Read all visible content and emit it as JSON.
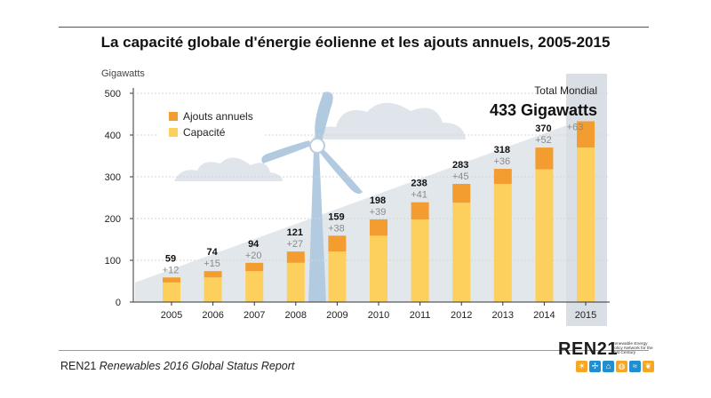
{
  "title": "La capacité globale d'énergie éolienne et les ajouts annuels, 2005-2015",
  "source": {
    "publisher": "REN21",
    "report": "Renewables 2016 Global Status Report"
  },
  "logo": {
    "wordmark": "REN21",
    "tagline": "Renewable Energy Policy Network for the 21st Century",
    "icons": [
      "sun-icon",
      "wind-icon",
      "hydro-icon",
      "power-icon",
      "wave-icon",
      "leaf-icon"
    ],
    "icon_colors": [
      "#f5a623",
      "#1f8fd0",
      "#1f8fd0",
      "#f5a623",
      "#1f8fd0",
      "#f5a623"
    ]
  },
  "total": {
    "label": "Total Mondial",
    "value": "433 Gigawatts"
  },
  "chart_data": {
    "type": "bar",
    "stacked": true,
    "ylabel": "Gigawatts",
    "ylim": [
      0,
      500
    ],
    "yticks": [
      0,
      100,
      200,
      300,
      400,
      500
    ],
    "grid": true,
    "legend_position": "top-left",
    "categories": [
      "2005",
      "2006",
      "2007",
      "2008",
      "2009",
      "2010",
      "2011",
      "2012",
      "2013",
      "2014",
      "2015"
    ],
    "series": [
      {
        "name": "Capacité",
        "color": "#fdd05e",
        "values": [
          47,
          59,
          74,
          94,
          121,
          159,
          198,
          238,
          283,
          318,
          370
        ]
      },
      {
        "name": "Ajouts annuels",
        "color": "#f39c2f",
        "values": [
          12,
          15,
          20,
          27,
          38,
          39,
          41,
          45,
          36,
          52,
          63
        ]
      }
    ],
    "total_labels": [
      "59",
      "74",
      "94",
      "121",
      "159",
      "198",
      "238",
      "283",
      "318",
      "370",
      ""
    ],
    "addition_labels": [
      "+12",
      "+15",
      "+20",
      "+27",
      "+38",
      "+39",
      "+41",
      "+45",
      "+36",
      "+52",
      "+63"
    ],
    "highlight_category": "2015"
  }
}
